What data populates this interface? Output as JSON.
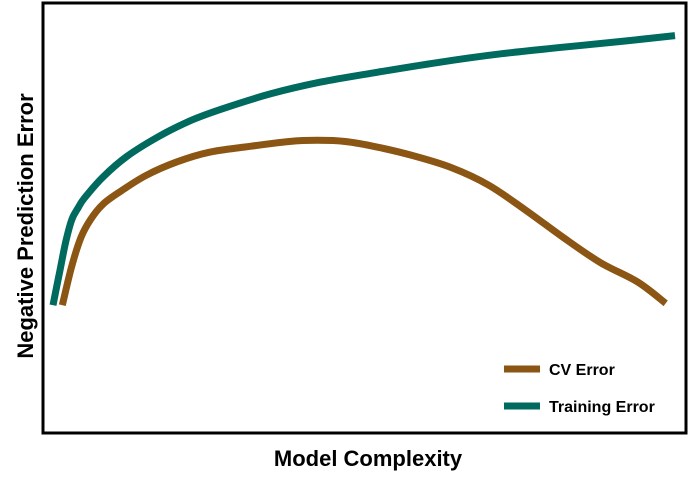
{
  "chart_data": {
    "type": "line",
    "title": "",
    "xlabel": "Model Complexity",
    "ylabel": "Negative Prediction Error",
    "xlim": [
      0,
      100
    ],
    "ylim": [
      0,
      100
    ],
    "x_ticks": [],
    "y_ticks": [],
    "grid": false,
    "legend_position": "bottom-right",
    "series": [
      {
        "name": "Training Error",
        "color": "#006A5E",
        "x": [
          0,
          1,
          2,
          3,
          4,
          5,
          8,
          12,
          17,
          22,
          27,
          35,
          43,
          52,
          62,
          72,
          82,
          92,
          100
        ],
        "y": [
          27,
          35,
          43,
          49,
          52,
          54.5,
          60,
          65.5,
          70.5,
          74.5,
          77.5,
          81.5,
          84.5,
          87,
          89.6,
          91.8,
          93.5,
          95.1,
          96.5
        ]
      },
      {
        "name": "CV Error",
        "color": "#8B5513",
        "x": [
          1.5,
          3,
          4.5,
          6,
          8,
          11,
          15,
          20,
          25,
          31,
          38,
          42.5,
          47,
          52,
          58,
          64,
          70,
          76,
          82,
          88,
          94,
          98.5
        ],
        "y": [
          27,
          37,
          44.5,
          49,
          53,
          56.5,
          60.5,
          64,
          66.4,
          67.8,
          69.2,
          69.5,
          69.2,
          67.8,
          65.5,
          62.5,
          58,
          51.5,
          44.5,
          38,
          33,
          27.5
        ]
      }
    ]
  }
}
